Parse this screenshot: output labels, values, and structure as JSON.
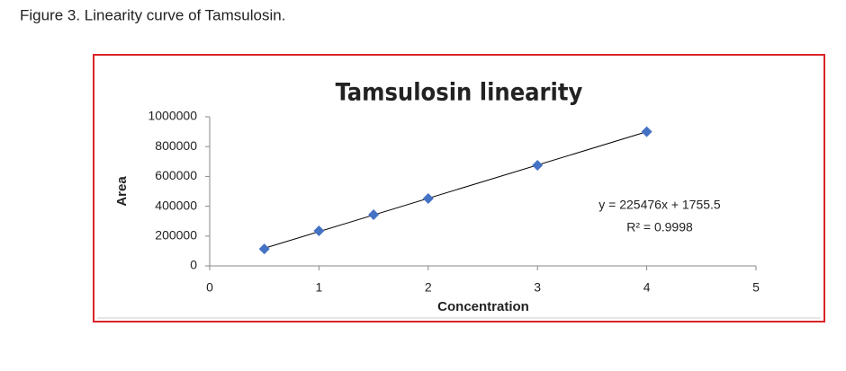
{
  "caption": "Figure 3.  Linearity curve of Tamsulosin.",
  "chart_data": {
    "type": "scatter",
    "title": "Tamsulosin linearity",
    "x_label": "Concentration",
    "y_label": "Area",
    "series": [
      {
        "name": "Area",
        "color": "#4472c4",
        "x": [
          0.5,
          1,
          1.5,
          2,
          3,
          4
        ],
        "values": [
          114000,
          235000,
          343000,
          452000,
          675000,
          900000
        ]
      }
    ],
    "trendline": true,
    "annotations": [
      "y = 225476x + 1755.5",
      "R² = 0.9998"
    ],
    "xlim": [
      0,
      5
    ],
    "xticks": [
      0,
      1,
      2,
      3,
      4,
      5
    ],
    "ylim": [
      0,
      1000000
    ],
    "yticks": [
      0,
      200000,
      400000,
      600000,
      800000,
      1000000
    ]
  }
}
